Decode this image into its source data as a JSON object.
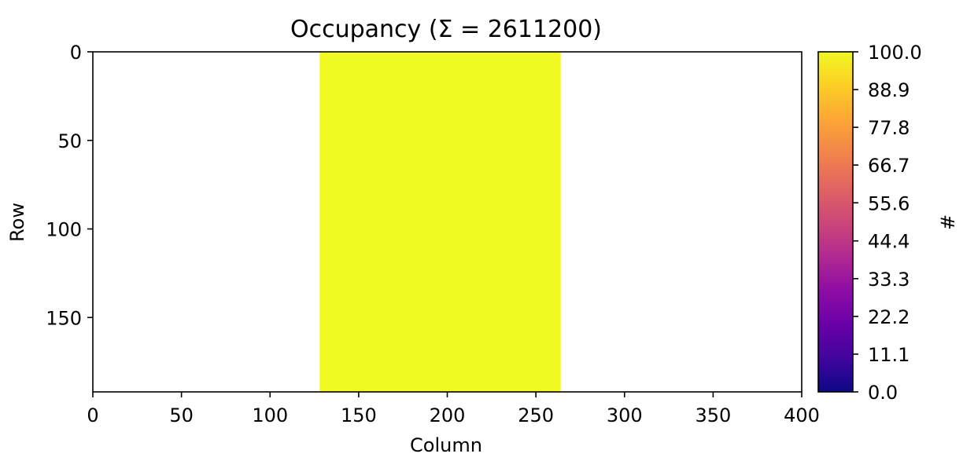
{
  "chart_data": {
    "type": "heatmap",
    "title": "Occupancy (Σ = 2611200)",
    "xlabel": "Column",
    "ylabel": "Row",
    "xlim": [
      0,
      400
    ],
    "ylim": [
      192,
      0
    ],
    "x_ticks": [
      0,
      50,
      100,
      150,
      200,
      250,
      300,
      350,
      400
    ],
    "y_ticks": [
      0,
      50,
      100,
      150
    ],
    "grid": false,
    "colormap": "plasma",
    "background_color": "#ffffff",
    "occupied_region": {
      "columns": [
        128,
        264
      ],
      "rows": [
        0,
        192
      ],
      "value": 100.0,
      "color": "#f0f921"
    },
    "colorbar": {
      "label": "#",
      "range": [
        0.0,
        100.0
      ],
      "ticks": [
        "0.0",
        "11.1",
        "22.2",
        "33.3",
        "44.4",
        "55.6",
        "66.7",
        "77.8",
        "88.9",
        "100.0"
      ],
      "colors": [
        "#0d0887",
        "#41049d",
        "#6a00a8",
        "#8f0da4",
        "#b12a90",
        "#cc4778",
        "#e16462",
        "#f2844b",
        "#fca636",
        "#fcce25",
        "#f0f921"
      ]
    }
  }
}
